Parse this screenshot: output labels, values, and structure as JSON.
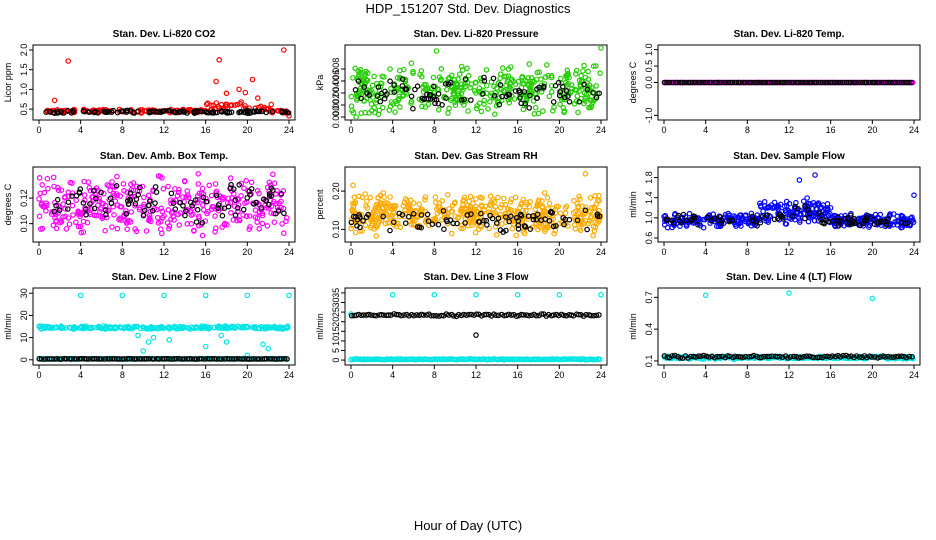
{
  "title": "HDP_151207  Std. Dev. Diagnostics",
  "xlabel": "Hour of Day (UTC)",
  "colors": {
    "black": "#000000",
    "red": "#ff0000",
    "green": "#22cc00",
    "magenta": "#ff00ff",
    "orange": "#ffaa00",
    "blue": "#0000ff",
    "cyan": "#00e5e5"
  },
  "chart_data": [
    {
      "type": "scatter",
      "title": "Stan. Dev. Li-820 CO2",
      "ylabel": "Licor ppm",
      "xlim": [
        0,
        24
      ],
      "ylim": [
        0.3,
        2.05
      ],
      "xticks": [
        "0",
        "4",
        "8",
        "12",
        "16",
        "20",
        "24"
      ],
      "yticks": [
        "0.5",
        "1.0",
        "1.5",
        "2.0"
      ],
      "ytick_values": [
        0.5,
        1.0,
        1.5,
        2.0
      ],
      "series": [
        {
          "color": "red",
          "base": 0.45,
          "spread": 0.05,
          "n": 170,
          "seed": 1,
          "outliers": [
            [
              2.8,
              1.72
            ],
            [
              1.5,
              0.72
            ],
            [
              16.2,
              0.65
            ],
            [
              17,
              1.2
            ],
            [
              17.3,
              1.75
            ],
            [
              18,
              0.9
            ],
            [
              19.2,
              1.0
            ],
            [
              19.8,
              0.92
            ],
            [
              20.5,
              1.25
            ],
            [
              21,
              0.78
            ],
            [
              22.3,
              0.62
            ],
            [
              23.5,
              2.0
            ],
            [
              24,
              0.33
            ]
          ],
          "bumps": [
            [
              16,
              22,
              0.2
            ]
          ]
        },
        {
          "color": "black",
          "base": 0.43,
          "spread": 0.04,
          "n": 110,
          "seed": 2
        }
      ]
    },
    {
      "type": "scatter",
      "title": "Stan. Dev. Li-820 Pressure",
      "ylabel": "kPa",
      "xlim": [
        0,
        24
      ],
      "ylim": [
        0,
        0.0115
      ],
      "xticks": [
        "0",
        "4",
        "8",
        "12",
        "16",
        "20",
        "24"
      ],
      "yticks": [
        "0.000",
        "0.002",
        "0.004",
        "0.006",
        "0.008"
      ],
      "ytick_values": [
        0,
        0.002,
        0.004,
        0.006,
        0.008
      ],
      "series": [
        {
          "color": "green",
          "base": 0.0045,
          "spread": 0.0045,
          "n": 420,
          "seed": 3,
          "outliers": [
            [
              8.2,
              0.011
            ],
            [
              24,
              0.0115
            ],
            [
              0.5,
              0.0
            ]
          ]
        },
        {
          "color": "black",
          "base": 0.004,
          "spread": 0.003,
          "n": 90,
          "seed": 4
        }
      ]
    },
    {
      "type": "scatter",
      "title": "Stan. Dev. Li-820 Temp.",
      "ylabel": "degrees C",
      "xlim": [
        0,
        24
      ],
      "ylim": [
        -1.05,
        1.05
      ],
      "xticks": [
        "0",
        "4",
        "8",
        "12",
        "16",
        "20",
        "24"
      ],
      "yticks": [
        "-1.0",
        "0.0",
        "0.5",
        "1.0"
      ],
      "ytick_values": [
        -1.0,
        0.0,
        0.5,
        1.0
      ],
      "series": [
        {
          "color": "magenta",
          "base": 0.0,
          "spread": 0.0,
          "n": 190,
          "seed": 5,
          "even": true
        },
        {
          "color": "black",
          "base": 0.0,
          "spread": 0.0,
          "n": 95,
          "seed": 6,
          "even": true
        }
      ]
    },
    {
      "type": "scatter",
      "title": "Stan. Dev. Amb. Box Temp.",
      "ylabel": "degrees C",
      "xlim": [
        0,
        24
      ],
      "ylim": [
        0.088,
        0.142
      ],
      "xticks": [
        "0",
        "4",
        "8",
        "12",
        "16",
        "20",
        "24"
      ],
      "yticks": [
        "0.10",
        "0.12"
      ],
      "ytick_values": [
        0.1,
        0.12
      ],
      "series": [
        {
          "color": "magenta",
          "base": 0.115,
          "spread": 0.025,
          "n": 380,
          "seed": 7
        },
        {
          "color": "black",
          "base": 0.116,
          "spread": 0.018,
          "n": 90,
          "seed": 8
        }
      ]
    },
    {
      "type": "scatter",
      "title": "Stan. Dev. Gas Stream RH",
      "ylabel": "percent",
      "xlim": [
        0,
        24
      ],
      "ylim": [
        0.075,
        0.255
      ],
      "xticks": [
        "0",
        "4",
        "8",
        "12",
        "16",
        "20",
        "24"
      ],
      "yticks": [
        "0.10",
        "0.20"
      ],
      "ytick_values": [
        0.1,
        0.2
      ],
      "series": [
        {
          "color": "orange",
          "base": 0.14,
          "spread": 0.06,
          "n": 480,
          "seed": 9,
          "outliers": [
            [
              22.5,
              0.245
            ],
            [
              0.2,
              0.215
            ]
          ]
        },
        {
          "color": "black",
          "base": 0.125,
          "spread": 0.035,
          "n": 85,
          "seed": 10
        }
      ]
    },
    {
      "type": "scatter",
      "title": "Stan. Dev. Sample Flow",
      "ylabel": "ml/min",
      "xlim": [
        0,
        24
      ],
      "ylim": [
        0.58,
        1.95
      ],
      "xticks": [
        "0",
        "4",
        "8",
        "12",
        "16",
        "20",
        "24"
      ],
      "yticks": [
        "0.6",
        "1.0",
        "1.4",
        "1.8"
      ],
      "ytick_values": [
        0.6,
        1.0,
        1.4,
        1.8
      ],
      "series": [
        {
          "color": "blue",
          "base": 0.95,
          "spread": 0.15,
          "n": 420,
          "seed": 11,
          "bumps": [
            [
              9,
              16,
              0.35
            ]
          ],
          "outliers": [
            [
              14.5,
              1.85
            ],
            [
              13,
              1.75
            ],
            [
              24,
              1.45
            ]
          ]
        },
        {
          "color": "black",
          "base": 0.95,
          "spread": 0.12,
          "n": 90,
          "seed": 12,
          "bumps": [
            [
              10,
              15,
              0.25
            ]
          ]
        }
      ]
    },
    {
      "type": "scatter",
      "title": "Stan. Dev. Line 2 Flow",
      "ylabel": "ml/min",
      "xlim": [
        0,
        24
      ],
      "ylim": [
        -1,
        31
      ],
      "xticks": [
        "0",
        "4",
        "8",
        "12",
        "16",
        "20",
        "24"
      ],
      "yticks": [
        "0",
        "10",
        "20",
        "30"
      ],
      "ytick_values": [
        0,
        10,
        20,
        30
      ],
      "series": [
        {
          "color": "cyan",
          "base": 14.5,
          "spread": 0.8,
          "n": 230,
          "seed": 13,
          "outliers": [
            [
              4,
              29
            ],
            [
              8,
              29
            ],
            [
              12,
              29
            ],
            [
              16,
              29
            ],
            [
              20,
              29
            ],
            [
              24,
              29
            ],
            [
              10,
              4
            ],
            [
              10.5,
              8
            ],
            [
              11,
              10
            ],
            [
              9.5,
              11
            ],
            [
              12.5,
              9
            ],
            [
              17.5,
              11
            ],
            [
              18,
              8
            ],
            [
              21.5,
              7
            ],
            [
              22,
              5
            ],
            [
              16,
              6
            ],
            [
              20,
              2
            ]
          ]
        },
        {
          "color": "cyan",
          "base": 0.4,
          "spread": 0.2,
          "n": 120,
          "seed": 14,
          "even": true
        },
        {
          "color": "black",
          "base": 0.4,
          "spread": 0.1,
          "n": 100,
          "seed": 15,
          "even": true
        }
      ]
    },
    {
      "type": "scatter",
      "title": "Stan. Dev. Line 3 Flow",
      "ylabel": "ml/min",
      "xlim": [
        0,
        24
      ],
      "ylim": [
        -1,
        36
      ],
      "xticks": [
        "0",
        "4",
        "8",
        "12",
        "16",
        "20",
        "24"
      ],
      "yticks": [
        "0",
        "5",
        "10",
        "15",
        "20",
        "25",
        "30",
        "35"
      ],
      "ytick_values": [
        0,
        5,
        10,
        15,
        20,
        25,
        30,
        35
      ],
      "series": [
        {
          "color": "cyan",
          "base": 0.4,
          "spread": 0.3,
          "n": 160,
          "seed": 16,
          "even": true,
          "outliers": [
            [
              4,
              34
            ],
            [
              8,
              34
            ],
            [
              12,
              34
            ],
            [
              16,
              34
            ],
            [
              20,
              34
            ],
            [
              24,
              34
            ],
            [
              0,
              24
            ]
          ]
        },
        {
          "color": "black",
          "base": 23.5,
          "spread": 0.7,
          "n": 100,
          "seed": 17,
          "even": true,
          "outliers": [
            [
              12,
              13
            ]
          ]
        }
      ]
    },
    {
      "type": "scatter",
      "title": "Stan. Dev. Line 4 (LT) Flow",
      "ylabel": "ml/min",
      "xlim": [
        0,
        24
      ],
      "ylim": [
        0.09,
        0.76
      ],
      "xticks": [
        "0",
        "4",
        "8",
        "12",
        "16",
        "20",
        "24"
      ],
      "yticks": [
        "0.1",
        "0.4",
        "0.7"
      ],
      "ytick_values": [
        0.1,
        0.4,
        0.7
      ],
      "series": [
        {
          "color": "cyan",
          "base": 0.13,
          "spread": 0.015,
          "n": 200,
          "seed": 18,
          "even": true,
          "outliers": [
            [
              4,
              0.72
            ],
            [
              12,
              0.74
            ],
            [
              20,
              0.69
            ]
          ]
        },
        {
          "color": "black",
          "base": 0.14,
          "spread": 0.015,
          "n": 95,
          "seed": 19,
          "even": true
        }
      ]
    }
  ]
}
